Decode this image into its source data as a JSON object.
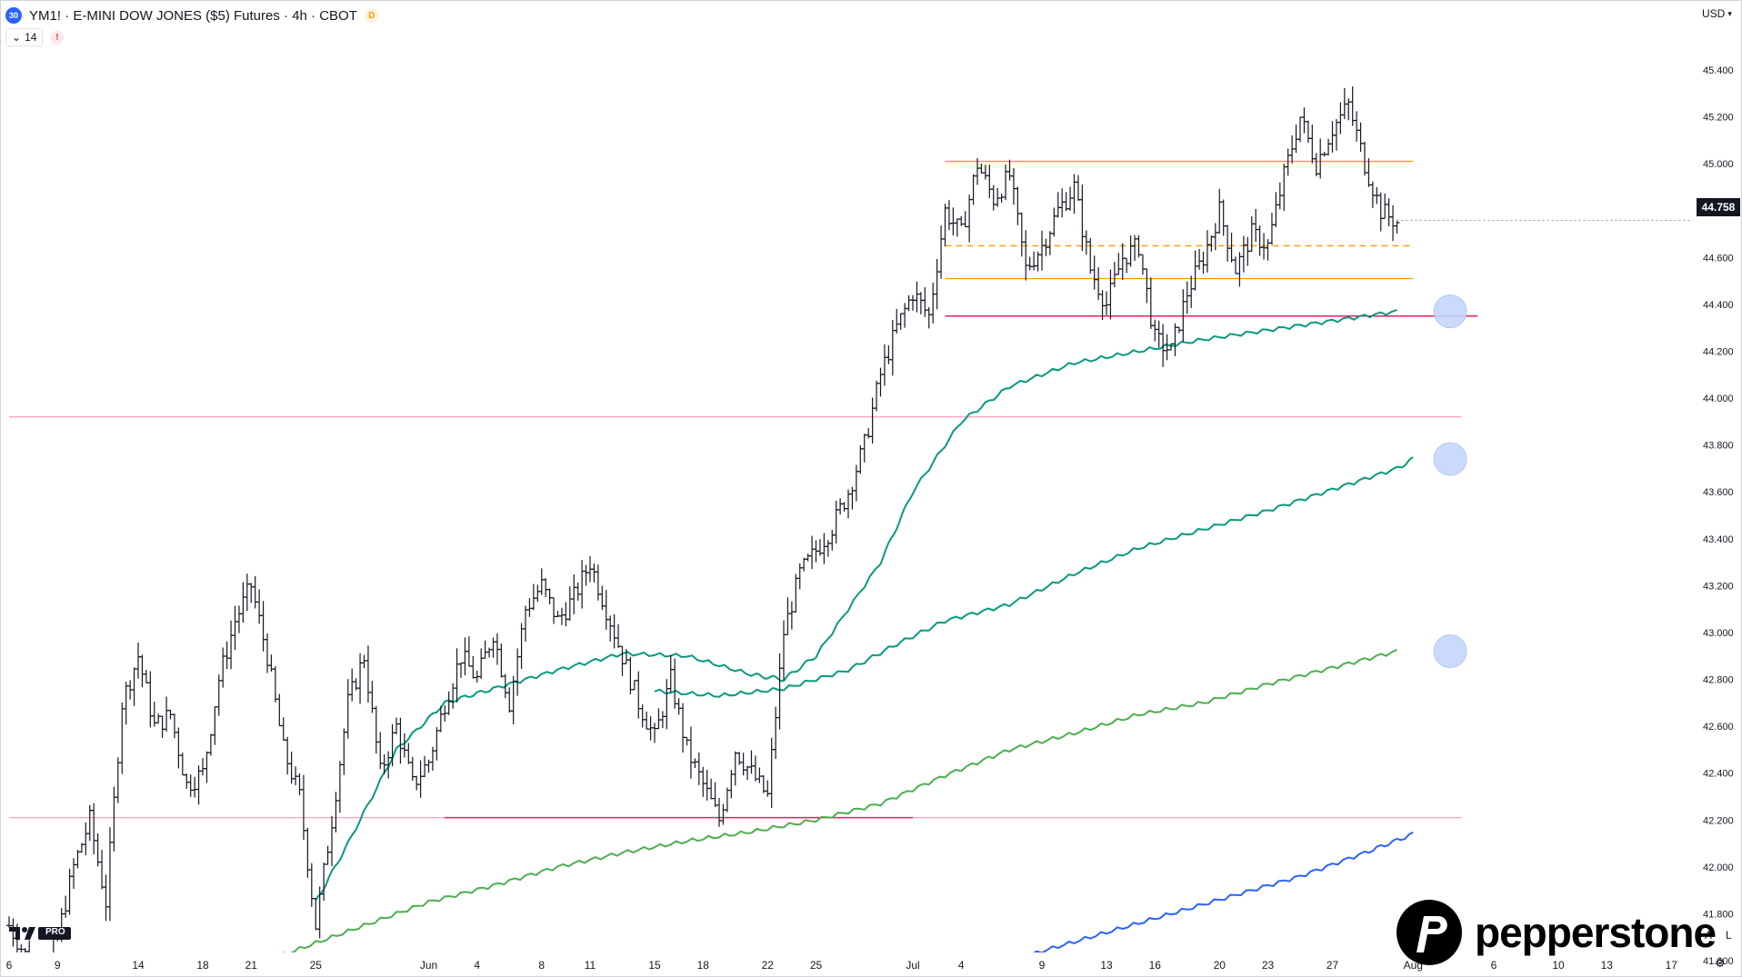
{
  "header": {
    "symbol_icon": "30",
    "title": "YM1! · E-MINI DOW JONES ($5) Futures · 4h · CBOT",
    "delay_badge": "D",
    "interval_value": "14",
    "alert_badge": "!"
  },
  "axis": {
    "currency": "USD",
    "current_price": "44.758",
    "foot_left": "A",
    "foot_right": "L"
  },
  "brand": {
    "logo_text": "pepperstone",
    "tv_badge": "PRO"
  },
  "colors": {
    "candle": "#131722",
    "resistance": "#ff9800",
    "support_pink": "#f7a8c0",
    "support_magenta": "#e91e63",
    "ma_teal": "#089981",
    "ma_green": "#4caf50",
    "ma_blue": "#2962ff",
    "target_circle": "#c5d6fb"
  },
  "chart_data": {
    "type": "candlestick",
    "title": "",
    "xlabel": "",
    "ylabel": "",
    "ylim": [
      41400,
      45700
    ],
    "y_ticks": [
      41600,
      41800,
      42000,
      42200,
      42400,
      42600,
      42800,
      43000,
      43200,
      43400,
      43600,
      43800,
      44000,
      44200,
      44400,
      44600,
      44800,
      45000,
      45200,
      45400
    ],
    "y_tick_labels": [
      "41.600",
      "41.800",
      "42.000",
      "42.200",
      "42.400",
      "42.600",
      "42.800",
      "43.000",
      "43.200",
      "43.400",
      "43.600",
      "43.800",
      "44.000",
      "44.200",
      "44.400",
      "44.600",
      "44.800",
      "45.000",
      "45.200",
      "45.400"
    ],
    "x_labels": [
      "6",
      "9",
      "14",
      "18",
      "21",
      "25",
      "Jun",
      "4",
      "8",
      "11",
      "15",
      "18",
      "22",
      "25",
      "Jul",
      "4",
      "9",
      "13",
      "16",
      "20",
      "23",
      "27",
      "Aug",
      "6",
      "10",
      "13",
      "17"
    ],
    "x_label_days": [
      0,
      3,
      8,
      12,
      15,
      19,
      26,
      29,
      33,
      36,
      40,
      43,
      47,
      50,
      56,
      59,
      64,
      68,
      71,
      75,
      78,
      82,
      87,
      92,
      96,
      99,
      103
    ],
    "x_range_days": [
      0,
      107
    ],
    "price_path": [
      [
        0,
        41750
      ],
      [
        2,
        41500
      ],
      [
        3,
        41700
      ],
      [
        4,
        42000
      ],
      [
        5,
        42200
      ],
      [
        6,
        41850
      ],
      [
        7,
        42700
      ],
      [
        8,
        42900
      ],
      [
        9,
        42600
      ],
      [
        10,
        42650
      ],
      [
        11,
        42350
      ],
      [
        12,
        42400
      ],
      [
        13,
        42800
      ],
      [
        14,
        43050
      ],
      [
        15,
        43200
      ],
      [
        16,
        42900
      ],
      [
        17,
        42500
      ],
      [
        18,
        42300
      ],
      [
        19,
        41750
      ],
      [
        20,
        42200
      ],
      [
        21,
        42700
      ],
      [
        22,
        42900
      ],
      [
        23,
        42400
      ],
      [
        24,
        42600
      ],
      [
        25,
        42350
      ],
      [
        26,
        42450
      ],
      [
        27,
        42700
      ],
      [
        28,
        42900
      ],
      [
        29,
        42800
      ],
      [
        30,
        43000
      ],
      [
        31,
        42700
      ],
      [
        32,
        43100
      ],
      [
        33,
        43200
      ],
      [
        34,
        43050
      ],
      [
        35,
        43150
      ],
      [
        36,
        43300
      ],
      [
        37,
        43100
      ],
      [
        38,
        42900
      ],
      [
        39,
        42700
      ],
      [
        40,
        42550
      ],
      [
        41,
        42800
      ],
      [
        42,
        42500
      ],
      [
        43,
        42350
      ],
      [
        44,
        42200
      ],
      [
        45,
        42500
      ],
      [
        46,
        42400
      ],
      [
        47,
        42300
      ],
      [
        48,
        43000
      ],
      [
        49,
        43250
      ],
      [
        50,
        43350
      ],
      [
        51,
        43450
      ],
      [
        52,
        43600
      ],
      [
        53,
        43800
      ],
      [
        54,
        44100
      ],
      [
        55,
        44300
      ],
      [
        56,
        44450
      ],
      [
        57,
        44350
      ],
      [
        58,
        44800
      ],
      [
        59,
        44700
      ],
      [
        60,
        45000
      ],
      [
        61,
        44850
      ],
      [
        62,
        44950
      ],
      [
        63,
        44550
      ],
      [
        64,
        44650
      ],
      [
        65,
        44800
      ],
      [
        66,
        44900
      ],
      [
        67,
        44550
      ],
      [
        68,
        44400
      ],
      [
        69,
        44600
      ],
      [
        70,
        44650
      ],
      [
        71,
        44250
      ],
      [
        72,
        44200
      ],
      [
        73,
        44450
      ],
      [
        74,
        44600
      ],
      [
        75,
        44800
      ],
      [
        76,
        44550
      ],
      [
        77,
        44700
      ],
      [
        78,
        44650
      ],
      [
        79,
        44950
      ],
      [
        80,
        45200
      ],
      [
        81,
        45000
      ],
      [
        82,
        45150
      ],
      [
        83,
        45250
      ],
      [
        84,
        45000
      ],
      [
        85,
        44800
      ],
      [
        86,
        44750
      ]
    ],
    "horizontal_levels": [
      {
        "price": 45010,
        "color": "#ff9800",
        "style": "solid",
        "x_from": 58,
        "x_to": 87
      },
      {
        "price": 44650,
        "color": "#ff9800",
        "style": "dashed",
        "x_from": 58,
        "x_to": 87
      },
      {
        "price": 44510,
        "color": "#ff9800",
        "style": "solid",
        "x_from": 58,
        "x_to": 87
      },
      {
        "price": 44350,
        "color": "#e91e63",
        "style": "solid",
        "x_from": 58,
        "x_to": 91
      },
      {
        "price": 43920,
        "color": "#f7a8c0",
        "style": "solid",
        "x_from": 0,
        "x_to": 90
      },
      {
        "price": 42210,
        "color": "#f7a8c0",
        "style": "solid",
        "x_from": 0,
        "x_to": 90
      },
      {
        "price": 42210,
        "color": "#e91e63",
        "style": "solid",
        "x_from": 27,
        "x_to": 56
      }
    ],
    "moving_averages": [
      {
        "color": "#089981",
        "points": [
          [
            19,
            41850
          ],
          [
            21,
            42100
          ],
          [
            24,
            42500
          ],
          [
            27,
            42700
          ],
          [
            30,
            42760
          ],
          [
            34,
            42840
          ],
          [
            38,
            42910
          ],
          [
            42,
            42900
          ],
          [
            46,
            42820
          ],
          [
            48,
            42800
          ],
          [
            50,
            42900
          ],
          [
            54,
            43300
          ],
          [
            56,
            43600
          ],
          [
            59,
            43900
          ],
          [
            62,
            44050
          ],
          [
            66,
            44150
          ],
          [
            70,
            44200
          ],
          [
            74,
            44250
          ],
          [
            78,
            44290
          ],
          [
            82,
            44330
          ],
          [
            86,
            44370
          ]
        ]
      },
      {
        "color": "#089981",
        "points": [
          [
            40,
            42750
          ],
          [
            44,
            42730
          ],
          [
            48,
            42760
          ],
          [
            52,
            42840
          ],
          [
            55,
            42950
          ],
          [
            58,
            43050
          ],
          [
            62,
            43120
          ],
          [
            66,
            43250
          ],
          [
            70,
            43360
          ],
          [
            74,
            43440
          ],
          [
            78,
            43520
          ],
          [
            82,
            43610
          ],
          [
            86,
            43700
          ],
          [
            87,
            43740
          ]
        ]
      },
      {
        "color": "#4caf50",
        "points": [
          [
            14,
            41550
          ],
          [
            18,
            41650
          ],
          [
            22,
            41750
          ],
          [
            26,
            41850
          ],
          [
            30,
            41920
          ],
          [
            34,
            42000
          ],
          [
            38,
            42060
          ],
          [
            42,
            42110
          ],
          [
            46,
            42150
          ],
          [
            50,
            42200
          ],
          [
            54,
            42270
          ],
          [
            58,
            42390
          ],
          [
            62,
            42500
          ],
          [
            66,
            42570
          ],
          [
            70,
            42650
          ],
          [
            74,
            42700
          ],
          [
            78,
            42780
          ],
          [
            82,
            42850
          ],
          [
            86,
            42920
          ]
        ]
      },
      {
        "color": "#2962ff",
        "points": [
          [
            52,
            41400
          ],
          [
            56,
            41470
          ],
          [
            60,
            41550
          ],
          [
            64,
            41640
          ],
          [
            68,
            41720
          ],
          [
            72,
            41800
          ],
          [
            76,
            41880
          ],
          [
            80,
            41960
          ],
          [
            84,
            42060
          ],
          [
            87,
            42140
          ]
        ]
      }
    ],
    "target_circles": [
      {
        "price": 44370,
        "day": 89.3
      },
      {
        "price": 43740,
        "day": 89.3
      },
      {
        "price": 42920,
        "day": 89.3
      }
    ],
    "last_price": 44758
  }
}
